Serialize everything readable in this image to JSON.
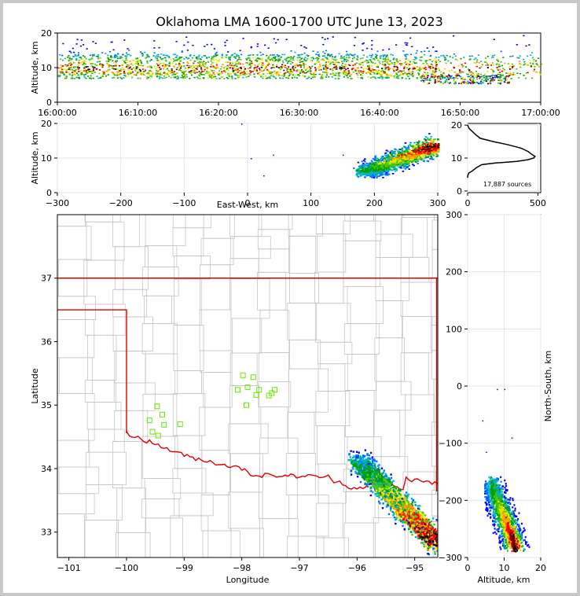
{
  "figure": {
    "title": "Oklahoma LMA 1600-1700 UTC June 13, 2023",
    "sources_text": "17,887 sources"
  },
  "chart_data": [
    {
      "panel": "altitude-time",
      "type": "heatmap",
      "xlabel": "",
      "ylabel": "Altitude, km",
      "x_ticks": [
        "16:00:00",
        "16:10:00",
        "16:20:00",
        "16:30:00",
        "16:40:00",
        "16:50:00",
        "17:00:00"
      ],
      "xlim": [
        "16:00:00",
        "17:00:00"
      ],
      "ylim": [
        0,
        20
      ],
      "y_ticks": [
        0,
        10,
        20
      ],
      "series": [
        {
          "time_min": [
            0,
            60
          ],
          "altitude_core_km": [
            7,
            15
          ],
          "note_range": [
            7,
            20
          ]
        },
        {
          "time_min": [
            45,
            55
          ],
          "altitude_core_km": [
            5,
            8
          ]
        }
      ]
    },
    {
      "panel": "altitude-eastwest",
      "type": "heatmap",
      "xlabel": "East-West, km",
      "ylabel": "Altitude, km",
      "xlim": [
        -300,
        300
      ],
      "ylim": [
        0,
        20
      ],
      "x_ticks": [
        "−300",
        "−200",
        "−100",
        "0",
        "100",
        "200",
        "300"
      ],
      "y_ticks": [
        0,
        10,
        20
      ],
      "cluster": {
        "x_km": [
          180,
          300
        ],
        "alt_km": [
          5,
          20
        ]
      }
    },
    {
      "panel": "altitude-histogram",
      "type": "line",
      "xlim": [
        0,
        520
      ],
      "ylim": [
        -0.5,
        20.5
      ],
      "x_ticks": [
        0,
        500
      ],
      "y_ticks": [
        0,
        10,
        20
      ],
      "altitude_km": [
        20,
        19,
        18,
        17,
        16,
        15,
        14,
        13,
        12,
        11,
        10.5,
        10,
        9.5,
        9,
        8.5,
        8,
        7,
        6,
        5.5,
        5,
        4.5,
        4
      ],
      "count": [
        0,
        10,
        35,
        60,
        90,
        180,
        290,
        380,
        430,
        460,
        480,
        470,
        430,
        350,
        200,
        100,
        60,
        30,
        10,
        3,
        1,
        0
      ]
    },
    {
      "panel": "map",
      "type": "heatmap",
      "xlabel": "Longitude",
      "ylabel": "Latitude",
      "xlim": [
        -101.2,
        -94.6
      ],
      "ylim": [
        32.6,
        38.0
      ],
      "x_ticks": [
        "−101",
        "−100",
        "−99",
        "−98",
        "−97",
        "−96",
        "−95"
      ],
      "y_ticks": [
        33,
        34,
        35,
        36,
        37
      ],
      "stations": [
        {
          "lon": -99.47,
          "lat": 34.98
        },
        {
          "lon": -99.38,
          "lat": 34.85
        },
        {
          "lon": -99.35,
          "lat": 34.69
        },
        {
          "lon": -99.6,
          "lat": 34.76
        },
        {
          "lon": -99.55,
          "lat": 34.58
        },
        {
          "lon": -99.45,
          "lat": 34.52
        },
        {
          "lon": -99.07,
          "lat": 34.7
        },
        {
          "lon": -97.98,
          "lat": 35.47
        },
        {
          "lon": -97.8,
          "lat": 35.44
        },
        {
          "lon": -97.9,
          "lat": 35.28
        },
        {
          "lon": -98.07,
          "lat": 35.24
        },
        {
          "lon": -97.7,
          "lat": 35.24
        },
        {
          "lon": -97.75,
          "lat": 35.16
        },
        {
          "lon": -97.53,
          "lat": 35.15
        },
        {
          "lon": -97.43,
          "lat": 35.24
        },
        {
          "lon": -97.48,
          "lat": 35.19
        },
        {
          "lon": -97.92,
          "lat": 35.0
        }
      ],
      "storm_band": {
        "lon": [
          -96.0,
          -94.6
        ],
        "lat": [
          32.7,
          34.3
        ]
      }
    },
    {
      "panel": "northsouth-altitude",
      "type": "heatmap",
      "xlabel": "Altitude, km",
      "ylabel": "North-South, km",
      "xlim": [
        0,
        20
      ],
      "ylim": [
        -300,
        300
      ],
      "x_ticks": [
        0,
        10,
        20
      ],
      "y_ticks": [
        "−300",
        "−200",
        "−100",
        "0",
        "100",
        "200",
        "300"
      ]
    }
  ]
}
